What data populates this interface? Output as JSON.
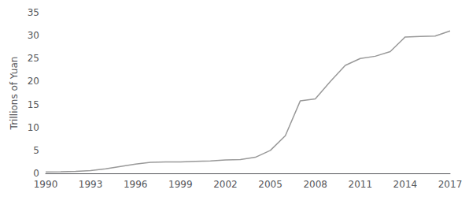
{
  "chart_data": {
    "type": "line",
    "ylabel": "Trillions of Yuan",
    "x": [
      1990,
      1991,
      1992,
      1993,
      1994,
      1995,
      1996,
      1997,
      1998,
      1999,
      2000,
      2001,
      2002,
      2003,
      2004,
      2005,
      2006,
      2007,
      2008,
      2009,
      2010,
      2011,
      2012,
      2013,
      2014,
      2015,
      2016,
      2017
    ],
    "values": [
      0.3,
      0.35,
      0.45,
      0.6,
      1.0,
      1.5,
      2.0,
      2.4,
      2.5,
      2.5,
      2.6,
      2.7,
      2.9,
      3.0,
      3.5,
      5.0,
      8.2,
      15.8,
      16.2,
      20.0,
      23.5,
      25.0,
      25.5,
      26.5,
      29.7,
      29.8,
      29.9,
      31.0
    ],
    "color": "#999999",
    "xlim": [
      1990,
      2017
    ],
    "xticks": [
      1990,
      1993,
      1996,
      1999,
      2002,
      2005,
      2008,
      2011,
      2014,
      2017
    ],
    "ylim": [
      0,
      35
    ],
    "yticks": [
      0,
      5,
      10,
      15,
      20,
      25,
      30,
      35
    ],
    "grid": false
  }
}
